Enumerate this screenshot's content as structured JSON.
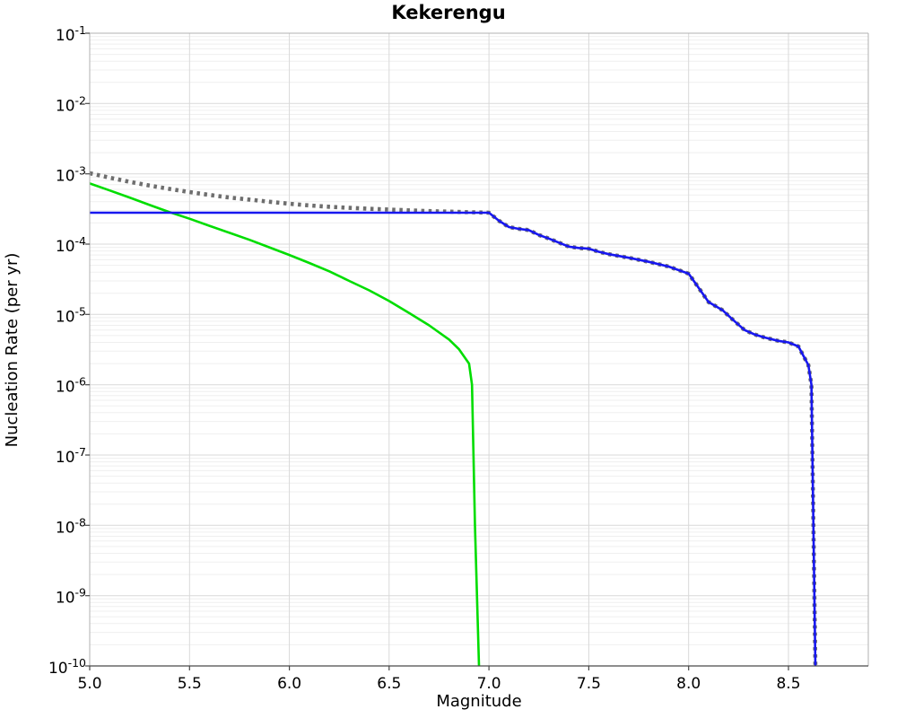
{
  "title": "Kekerengu",
  "colors": {
    "background": "#ffffff",
    "grid_major": "#d9d9d9",
    "grid_minor": "#efefef",
    "spine": "#b0b0b0",
    "spine_bottom": "#4a4a4a",
    "tick": "#4a4a4a",
    "text": "#000000",
    "series_gray": "#6e6e6e",
    "series_blue": "#1717ef",
    "series_green": "#00dd00"
  },
  "chart_data": {
    "type": "line",
    "title": "Kekerengu",
    "xlabel": "Magnitude",
    "ylabel": "Nucleation Rate (per yr)",
    "x_axis_scale": "linear",
    "y_axis_scale": "log",
    "xlim": [
      5.0,
      8.9
    ],
    "ylim": [
      1e-10,
      0.1
    ],
    "x_ticks": [
      5.0,
      5.5,
      6.0,
      6.5,
      7.0,
      7.5,
      8.0,
      8.5
    ],
    "y_tick_exponents": [
      -1,
      -2,
      -3,
      -4,
      -5,
      -6,
      -7,
      -8,
      -9,
      -10
    ],
    "grid": true,
    "legend": false,
    "series": [
      {
        "name": "gray-dotted",
        "color": "#6e6e6e",
        "style": "dotted",
        "points": [
          [
            5.0,
            0.00102
          ],
          [
            5.1,
            0.00088
          ],
          [
            5.2,
            0.00077
          ],
          [
            5.3,
            0.00068
          ],
          [
            5.4,
            0.00061
          ],
          [
            5.5,
            0.00055
          ],
          [
            5.6,
            0.0005
          ],
          [
            5.7,
            0.00046
          ],
          [
            5.8,
            0.00043
          ],
          [
            5.9,
            0.0004
          ],
          [
            6.0,
            0.000375
          ],
          [
            6.1,
            0.000355
          ],
          [
            6.2,
            0.00034
          ],
          [
            6.3,
            0.000328
          ],
          [
            6.4,
            0.000318
          ],
          [
            6.5,
            0.00031
          ],
          [
            6.6,
            0.000302
          ],
          [
            6.7,
            0.000295
          ],
          [
            6.8,
            0.00029
          ],
          [
            6.9,
            0.000285
          ],
          [
            7.0,
            0.00028
          ],
          [
            7.05,
            0.000215
          ],
          [
            7.1,
            0.000175
          ],
          [
            7.15,
            0.000165
          ],
          [
            7.2,
            0.000158
          ],
          [
            7.25,
            0.000135
          ],
          [
            7.3,
            0.00012
          ],
          [
            7.35,
            0.000105
          ],
          [
            7.4,
            9.2e-05
          ],
          [
            7.45,
            8.8e-05
          ],
          [
            7.5,
            8.6e-05
          ],
          [
            7.55,
            7.8e-05
          ],
          [
            7.6,
            7.2e-05
          ],
          [
            7.7,
            6.4e-05
          ],
          [
            7.8,
            5.6e-05
          ],
          [
            7.9,
            4.8e-05
          ],
          [
            8.0,
            3.8e-05
          ],
          [
            8.05,
            2.4e-05
          ],
          [
            8.1,
            1.5e-05
          ],
          [
            8.17,
            1.15e-05
          ],
          [
            8.22,
            8.5e-06
          ],
          [
            8.28,
            6e-06
          ],
          [
            8.33,
            5.2e-06
          ],
          [
            8.38,
            4.7e-06
          ],
          [
            8.45,
            4.2e-06
          ],
          [
            8.5,
            4e-06
          ],
          [
            8.55,
            3.5e-06
          ],
          [
            8.6,
            1.9e-06
          ],
          [
            8.615,
            1e-06
          ],
          [
            8.625,
            1e-08
          ],
          [
            8.635,
            1e-10
          ]
        ]
      },
      {
        "name": "green-solid",
        "color": "#00dd00",
        "style": "solid",
        "points": [
          [
            5.0,
            0.00073
          ],
          [
            5.1,
            0.00058
          ],
          [
            5.2,
            0.00046
          ],
          [
            5.3,
            0.00036
          ],
          [
            5.4,
            0.000285
          ],
          [
            5.5,
            0.00023
          ],
          [
            5.6,
            0.000182
          ],
          [
            5.7,
            0.000145
          ],
          [
            5.8,
            0.000115
          ],
          [
            5.9,
            9e-05
          ],
          [
            6.0,
            7e-05
          ],
          [
            6.1,
            5.4e-05
          ],
          [
            6.2,
            4.1e-05
          ],
          [
            6.3,
            3e-05
          ],
          [
            6.4,
            2.2e-05
          ],
          [
            6.5,
            1.55e-05
          ],
          [
            6.6,
            1.05e-05
          ],
          [
            6.7,
            7e-06
          ],
          [
            6.8,
            4.4e-06
          ],
          [
            6.85,
            3.2e-06
          ],
          [
            6.9,
            2e-06
          ],
          [
            6.915,
            1e-06
          ],
          [
            6.93,
            1e-08
          ],
          [
            6.95,
            1e-10
          ]
        ]
      },
      {
        "name": "blue-solid",
        "color": "#1717ef",
        "style": "solid",
        "points": [
          [
            5.0,
            0.00028
          ],
          [
            7.0,
            0.00028
          ],
          [
            7.05,
            0.000215
          ],
          [
            7.1,
            0.000175
          ],
          [
            7.15,
            0.000165
          ],
          [
            7.2,
            0.000158
          ],
          [
            7.25,
            0.000135
          ],
          [
            7.3,
            0.00012
          ],
          [
            7.35,
            0.000105
          ],
          [
            7.4,
            9.2e-05
          ],
          [
            7.45,
            8.8e-05
          ],
          [
            7.5,
            8.6e-05
          ],
          [
            7.55,
            7.8e-05
          ],
          [
            7.6,
            7.2e-05
          ],
          [
            7.7,
            6.4e-05
          ],
          [
            7.8,
            5.6e-05
          ],
          [
            7.9,
            4.8e-05
          ],
          [
            8.0,
            3.8e-05
          ],
          [
            8.05,
            2.4e-05
          ],
          [
            8.1,
            1.5e-05
          ],
          [
            8.17,
            1.15e-05
          ],
          [
            8.22,
            8.5e-06
          ],
          [
            8.28,
            6e-06
          ],
          [
            8.33,
            5.2e-06
          ],
          [
            8.38,
            4.7e-06
          ],
          [
            8.45,
            4.2e-06
          ],
          [
            8.5,
            4e-06
          ],
          [
            8.55,
            3.5e-06
          ],
          [
            8.6,
            1.9e-06
          ],
          [
            8.615,
            1e-06
          ],
          [
            8.625,
            1e-08
          ],
          [
            8.635,
            1e-10
          ]
        ]
      }
    ]
  }
}
